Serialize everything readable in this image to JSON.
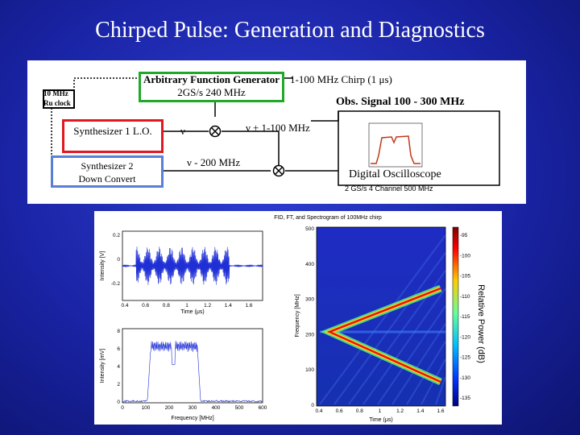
{
  "slide": {
    "title": "Chirped Pulse: Generation and Diagnostics"
  },
  "diagram": {
    "clock_label_line1": "10 MHz",
    "clock_label_line2": "Ru clock",
    "afg_line1": "Arbitrary Function Generator",
    "afg_line2": "2GS/s  240 MHz",
    "chirp_label": "1-100 MHz Chirp (1 μs)",
    "synth1_label": "Synthesizer 1 L.O.",
    "synth2_line1": "Synthesizer  2",
    "synth2_line2": "Down Convert",
    "nu_label": "ν",
    "nu_plus_label": "ν ± 1-100 MHz",
    "nu_minus_label": "ν - 200 MHz",
    "obs_signal_label": "Obs. Signal 100 - 300 MHz",
    "scope_label": "Digital  Oscilloscope",
    "scope_spec": "2 GS/s 4 Channel 500 MHz",
    "colors": {
      "afg_box": "#1fa82a",
      "synth1_box": "#e0181f",
      "synth2_box": "#5a7fd6",
      "scope_trace": "#c0391b"
    }
  },
  "plots": {
    "title": "FID, FT, and Spectrogram of 100MHz chirp",
    "fid": {
      "ylabel": "Intensity [V]",
      "xlabel": "Time (μs)",
      "yticks": [
        "0.2",
        "0",
        "-0.2"
      ],
      "xticks": [
        "0.4",
        "0.6",
        "0.8",
        "1",
        "1.2",
        "1.4",
        "1.6"
      ]
    },
    "ft": {
      "ylabel": "Intensity [mV]",
      "xlabel": "Frequency [MHz]",
      "yticks": [
        "8",
        "6",
        "4",
        "2",
        "0"
      ],
      "xticks": [
        "0",
        "100",
        "200",
        "300",
        "400",
        "500",
        "600"
      ]
    },
    "spectrogram": {
      "ylabel": "Frequency [MHz]",
      "xlabel": "Time (μs)",
      "yticks": [
        "500",
        "400",
        "300",
        "200",
        "100",
        "0"
      ],
      "xticks": [
        "0.4",
        "0.6",
        "0.8",
        "1",
        "1.2",
        "1.4",
        "1.6"
      ]
    },
    "colorbar": {
      "ticks": [
        "-95",
        "-100",
        "-105",
        "-110",
        "-115",
        "-120",
        "-125",
        "-130",
        "-135"
      ],
      "label": "Relative Power (dB)"
    }
  }
}
